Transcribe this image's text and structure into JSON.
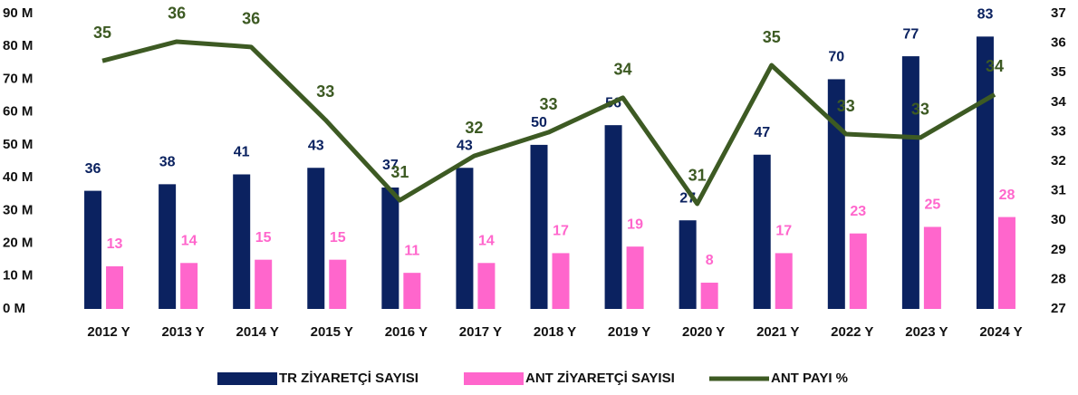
{
  "chart_data": {
    "type": "bar-line",
    "categories": [
      "2012 Y",
      "2013 Y",
      "2014 Y",
      "2015 Y",
      "2016 Y",
      "2017 Y",
      "2018 Y",
      "2019 Y",
      "2020 Y",
      "2021 Y",
      "2022 Y",
      "2023 Y",
      "2024 Y"
    ],
    "series": [
      {
        "name": "TR ZİYARETÇİ SAYISI",
        "type": "bar",
        "color": "#0b2260",
        "values": [
          36,
          38,
          41,
          43,
          37,
          43,
          50,
          56,
          27,
          47,
          70,
          77,
          83
        ]
      },
      {
        "name": "ANT ZİYARETÇİ SAYISI",
        "type": "bar",
        "color": "#ff66cc",
        "values": [
          13,
          14,
          15,
          15,
          11,
          14,
          17,
          19,
          8,
          17,
          23,
          25,
          28
        ]
      },
      {
        "name": "ANT PAYI %",
        "type": "line",
        "axis": "y2",
        "color": "#3d5a23",
        "values": [
          35.4,
          36.05,
          35.87,
          33.4,
          30.68,
          32.18,
          32.98,
          34.15,
          30.56,
          35.25,
          32.92,
          32.8,
          34.26
        ],
        "value_labels": [
          "35",
          "36",
          "36",
          "33",
          "31",
          "32",
          "33",
          "34",
          "31",
          "35",
          "33",
          "33",
          "34"
        ]
      }
    ],
    "ylim": [
      0,
      90
    ],
    "yticks": [
      {
        "value": 0,
        "label": "0 M"
      },
      {
        "value": 10,
        "label": "10 M"
      },
      {
        "value": 20,
        "label": "20 M"
      },
      {
        "value": 30,
        "label": "30 M"
      },
      {
        "value": 40,
        "label": "40 M"
      },
      {
        "value": 50,
        "label": "50 M"
      },
      {
        "value": 60,
        "label": "60 M"
      },
      {
        "value": 70,
        "label": "70 M"
      },
      {
        "value": 80,
        "label": "80 M"
      },
      {
        "value": 90,
        "label": "90 M"
      }
    ],
    "y2lim": [
      27,
      37
    ],
    "y2ticks": [
      27,
      28,
      29,
      30,
      31,
      32,
      33,
      34,
      35,
      36,
      37
    ],
    "grid": false,
    "legend": "bottom"
  }
}
